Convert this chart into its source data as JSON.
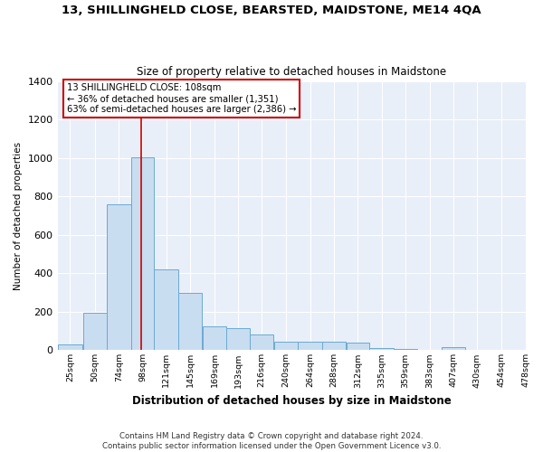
{
  "title": "13, SHILLINGHELD CLOSE, BEARSTED, MAIDSTONE, ME14 4QA",
  "subtitle": "Size of property relative to detached houses in Maidstone",
  "xlabel": "Distribution of detached houses by size in Maidstone",
  "ylabel": "Number of detached properties",
  "bar_color": "#c9ddf0",
  "bar_edge_color": "#6aaad4",
  "background_color": "#e8eff8",
  "grid_color": "#ffffff",
  "annotation_line_color": "#cc0000",
  "annotation_box_color": "#cc0000",
  "annotation_text": "13 SHILLINGHELD CLOSE: 108sqm\n← 36% of detached houses are smaller (1,351)\n63% of semi-detached houses are larger (2,386) →",
  "footer_line1": "Contains HM Land Registry data © Crown copyright and database right 2024.",
  "footer_line2": "Contains public sector information licensed under the Open Government Licence v3.0.",
  "property_size": 108,
  "bin_edges": [
    25,
    50,
    74,
    98,
    121,
    145,
    169,
    193,
    216,
    240,
    264,
    288,
    312,
    335,
    359,
    383,
    407,
    430,
    454,
    478
  ],
  "bin_counts": [
    28,
    195,
    760,
    1005,
    420,
    300,
    125,
    115,
    80,
    45,
    42,
    42,
    38,
    10,
    5,
    0,
    18,
    0,
    4,
    0
  ],
  "ylim": [
    0,
    1400
  ],
  "yticks": [
    0,
    200,
    400,
    600,
    800,
    1000,
    1200,
    1400
  ]
}
